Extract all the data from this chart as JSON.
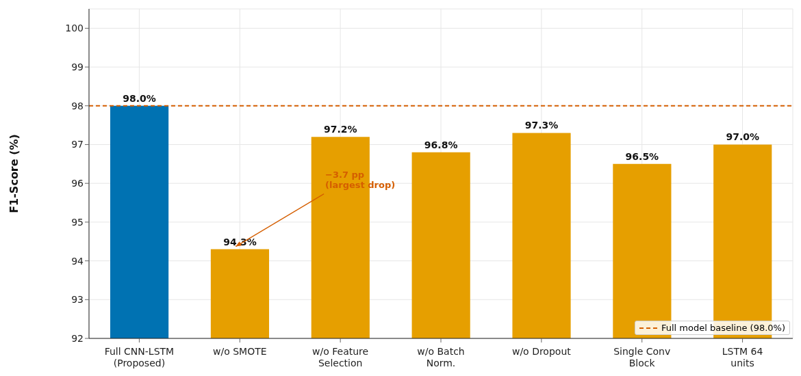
{
  "chart_data": {
    "type": "bar",
    "ylabel": "F1-Score (%)",
    "categories": [
      "Full CNN-LSTM\n(Proposed)",
      "w/o SMOTE",
      "w/o Feature\nSelection",
      "w/o Batch\nNorm.",
      "w/o Dropout",
      "Single Conv\nBlock",
      "LSTM 64\nunits"
    ],
    "values": [
      98.0,
      94.3,
      97.2,
      96.8,
      97.3,
      96.5,
      97.0
    ],
    "colors": [
      "#0072b2",
      "#e69f00",
      "#e69f00",
      "#e69f00",
      "#e69f00",
      "#e69f00",
      "#e69f00"
    ],
    "value_labels": [
      "98.0%",
      "94.3%",
      "97.2%",
      "96.8%",
      "97.3%",
      "96.5%",
      "97.0%"
    ],
    "ylim": [
      92,
      100.5
    ],
    "yticks": [
      92,
      93,
      94,
      95,
      96,
      97,
      98,
      99,
      100
    ],
    "grid": true,
    "legend": "bottom right",
    "ref_lines": [
      {
        "axis": "y",
        "value": 98.0,
        "label": "Full model baseline (98.0%)",
        "color": "#d55e00",
        "line_style": "dashed"
      }
    ],
    "annotations": [
      {
        "text": "−3.7 pp\n(largest drop)",
        "x": "w/o SMOTE",
        "y": 94.3
      }
    ]
  }
}
